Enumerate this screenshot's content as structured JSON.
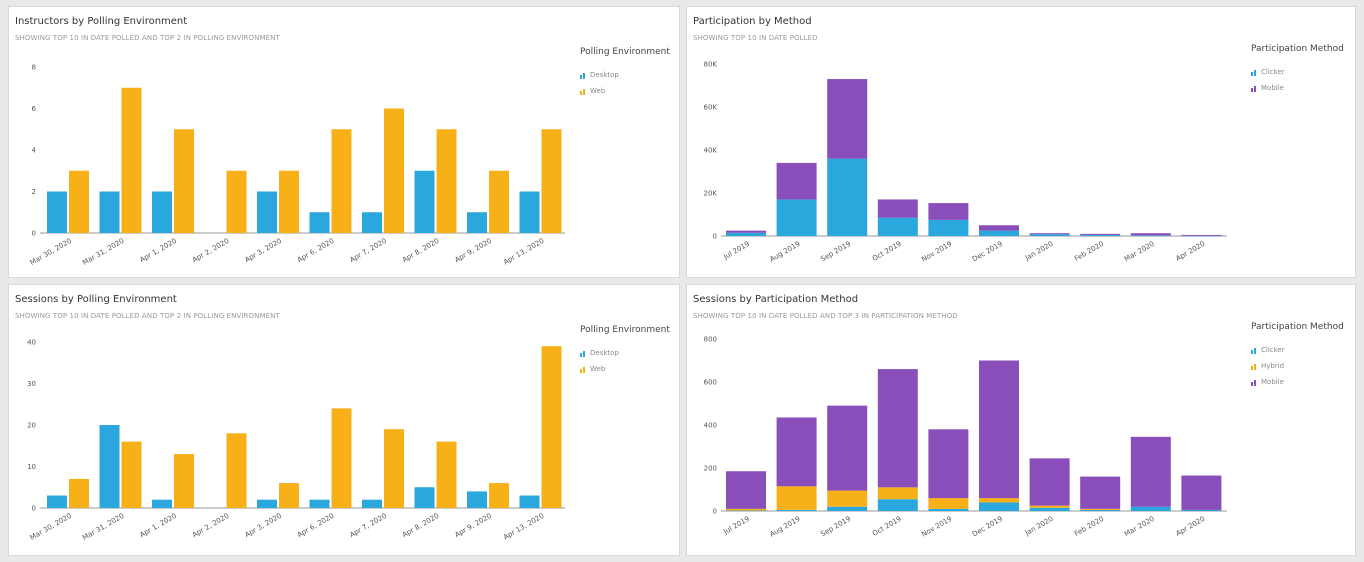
{
  "colors": {
    "desktop": "#2aa7dc",
    "web": "#f8b019",
    "clicker": "#2aa7dc",
    "hybrid": "#f8b019",
    "mobile": "#8a4ebb"
  },
  "panels": {
    "instructors": {
      "title": "Instructors by Polling Environment",
      "subtitle": "SHOWING TOP 10 IN DATE POLLED AND TOP 2 IN POLLING ENVIRONMENT",
      "legend_title": "Polling Environment",
      "legend_items": [
        "Desktop",
        "Web"
      ],
      "legend_icons": [
        "bar-chart-icon",
        "bar-chart-icon"
      ]
    },
    "participation": {
      "title": "Participation by Method",
      "subtitle": "SHOWING TOP 10 IN DATE POLLED",
      "legend_title": "Participation Method",
      "legend_items": [
        "Clicker",
        "Mobile"
      ],
      "legend_icons": [
        "bar-chart-icon",
        "bar-chart-icon"
      ]
    },
    "sessions": {
      "title": "Sessions by Polling Environment",
      "subtitle": "SHOWING TOP 10 IN DATE POLLED AND TOP 2 IN POLLING ENVIRONMENT",
      "legend_title": "Polling Environment",
      "legend_items": [
        "Desktop",
        "Web"
      ],
      "legend_icons": [
        "bar-chart-icon",
        "bar-chart-icon"
      ]
    },
    "sessions_method": {
      "title": "Sessions by Participation Method",
      "subtitle": "SHOWING TOP 10 IN DATE POLLED AND TOP 3 IN PARTICIPATION METHOD",
      "legend_title": "Participation Method",
      "legend_items": [
        "Clicker",
        "Hybrid",
        "Mobile"
      ],
      "legend_icons": [
        "bar-chart-icon",
        "bar-chart-icon",
        "bar-chart-icon"
      ]
    }
  },
  "chart_data": [
    {
      "type": "bar",
      "title": "Instructors by Polling Environment",
      "categories": [
        "Mar 30, 2020",
        "Mar 31, 2020",
        "Apr 1, 2020",
        "Apr 2, 2020",
        "Apr 3, 2020",
        "Apr 6, 2020",
        "Apr 7, 2020",
        "Apr 8, 2020",
        "Apr 9, 2020",
        "Apr 13, 2020"
      ],
      "series": [
        {
          "name": "Desktop",
          "values": [
            2,
            2,
            2,
            0,
            2,
            1,
            1,
            3,
            1,
            2
          ]
        },
        {
          "name": "Web",
          "values": [
            3,
            7,
            5,
            3,
            3,
            5,
            6,
            5,
            3,
            5
          ]
        }
      ],
      "yticks": [
        "0",
        "2",
        "4",
        "6",
        "8"
      ],
      "ylim": [
        0,
        8
      ]
    },
    {
      "type": "bar",
      "stacked": true,
      "title": "Participation by Method",
      "categories": [
        "Jul 2019",
        "Aug 2019",
        "Sep 2019",
        "Oct 2019",
        "Nov 2019",
        "Dec 2019",
        "Jan 2020",
        "Feb 2020",
        "Mar 2020",
        "Apr 2020"
      ],
      "series": [
        {
          "name": "Clicker",
          "values": [
            1500,
            17000,
            36000,
            8500,
            7500,
            2500,
            800,
            500,
            300,
            100
          ]
        },
        {
          "name": "Mobile",
          "values": [
            1000,
            17000,
            37000,
            8500,
            7800,
            2500,
            500,
            500,
            1000,
            400
          ]
        }
      ],
      "yticks": [
        "0",
        "20K",
        "40K",
        "60K",
        "80K"
      ],
      "ylim": [
        0,
        80000
      ]
    },
    {
      "type": "bar",
      "title": "Sessions by Polling Environment",
      "categories": [
        "Mar 30, 2020",
        "Mar 31, 2020",
        "Apr 1, 2020",
        "Apr 2, 2020",
        "Apr 3, 2020",
        "Apr 6, 2020",
        "Apr 7, 2020",
        "Apr 8, 2020",
        "Apr 9, 2020",
        "Apr 13, 2020"
      ],
      "series": [
        {
          "name": "Desktop",
          "values": [
            3,
            20,
            2,
            0,
            2,
            2,
            2,
            5,
            4,
            3
          ]
        },
        {
          "name": "Web",
          "values": [
            7,
            16,
            13,
            18,
            6,
            24,
            19,
            16,
            6,
            39
          ]
        }
      ],
      "yticks": [
        "0",
        "10",
        "20",
        "30",
        "40"
      ],
      "ylim": [
        0,
        40
      ]
    },
    {
      "type": "bar",
      "stacked": true,
      "title": "Sessions by Participation Method",
      "categories": [
        "Jul 2019",
        "Aug 2019",
        "Sep 2019",
        "Oct 2019",
        "Nov 2019",
        "Dec 2019",
        "Jan 2020",
        "Feb 2020",
        "Mar 2020",
        "Apr 2020"
      ],
      "series": [
        {
          "name": "Clicker",
          "values": [
            2,
            5,
            20,
            55,
            10,
            40,
            15,
            5,
            20,
            5
          ]
        },
        {
          "name": "Hybrid",
          "values": [
            8,
            110,
            75,
            55,
            50,
            20,
            10,
            5,
            0,
            0
          ]
        },
        {
          "name": "Mobile",
          "values": [
            175,
            320,
            395,
            550,
            320,
            640,
            220,
            150,
            325,
            160
          ]
        }
      ],
      "yticks": [
        "0",
        "200",
        "400",
        "600",
        "800"
      ],
      "ylim": [
        0,
        800
      ]
    }
  ]
}
